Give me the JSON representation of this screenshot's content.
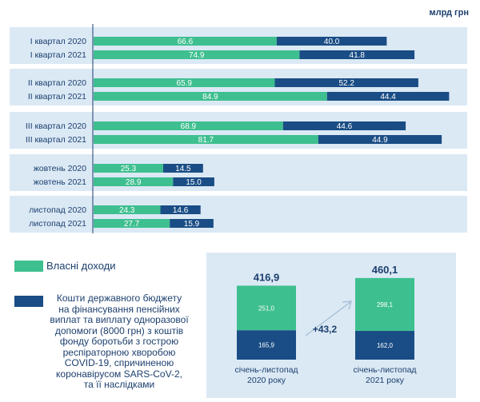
{
  "unit_label": "млрд грн",
  "colors": {
    "own_income": "#3ebf8f",
    "state_budget": "#1a4d85",
    "panel_bg": "#dbe9f5",
    "text": "#1c3f6e"
  },
  "chart_data": {
    "type": "bar",
    "orientation": "horizontal",
    "stacked": true,
    "categories": [
      "I квартал 2020",
      "I квартал 2021",
      "II квартал 2020",
      "II квартал 2021",
      "III квартал 2020",
      "III квартал 2021",
      "жовтень 2020",
      "жовтень 2021",
      "листопад 2020",
      "листопад 2021"
    ],
    "groups": [
      [
        "I квартал 2020",
        "I квартал 2021"
      ],
      [
        "II квартал 2020",
        "II квартал 2021"
      ],
      [
        "III квартал 2020",
        "III квартал 2021"
      ],
      [
        "жовтень 2020",
        "жовтень 2021"
      ],
      [
        "листопад 2020",
        "листопад 2021"
      ]
    ],
    "series": [
      {
        "name": "Власні доходи",
        "values": [
          66.6,
          74.9,
          65.9,
          84.9,
          68.9,
          81.7,
          25.3,
          28.9,
          24.3,
          27.7
        ]
      },
      {
        "name": "Кошти державного бюджету на фінансування пенсійних виплат та виплату одноразової допомоги (8000 грн) з коштів фонду боротьби з гострою респіраторною хворобою COVID-19, спричиненою коронавірусом SARS-CoV-2, та її наслідками",
        "values": [
          40.0,
          41.8,
          52.2,
          44.4,
          44.6,
          44.9,
          14.5,
          15.0,
          14.6,
          15.9
        ]
      }
    ],
    "value_labels": [
      [
        "66.6",
        "74.9",
        "65.9",
        "84.9",
        "68.9",
        "81.7",
        "25.3",
        "28.9",
        "24.3",
        "27.7"
      ],
      [
        "40.0",
        "41.8",
        "52.2",
        "44.4",
        "44.6",
        "44.9",
        "14.5",
        "15.0",
        "14.6",
        "15.9"
      ]
    ],
    "xlim": [
      0,
      135
    ]
  },
  "legend": {
    "own_income_label": "Власні доходи",
    "state_budget_label_lines": [
      "Кошти державного бюджету",
      "на фінансування пенсійних",
      "виплат та виплату одноразової",
      "допомоги (8000 грн) з коштів",
      "фонду боротьби з гострою",
      "респіраторною хворобою",
      "COVID-19, спричиненою",
      "коронавірусом SARS-CoV-2,",
      "та її наслідками"
    ]
  },
  "summary": {
    "diff_label": "+43,2",
    "columns": [
      {
        "total_label": "416,9",
        "own_label": "251,0",
        "own_value": 251.0,
        "budget_label": "165,9",
        "budget_value": 165.9,
        "period_lines": [
          "січень-листопад",
          "2020 року"
        ]
      },
      {
        "total_label": "460,1",
        "own_label": "298,1",
        "own_value": 298.1,
        "budget_label": "162,0",
        "budget_value": 162.0,
        "period_lines": [
          "січень-листопад",
          "2021 року"
        ]
      }
    ]
  }
}
